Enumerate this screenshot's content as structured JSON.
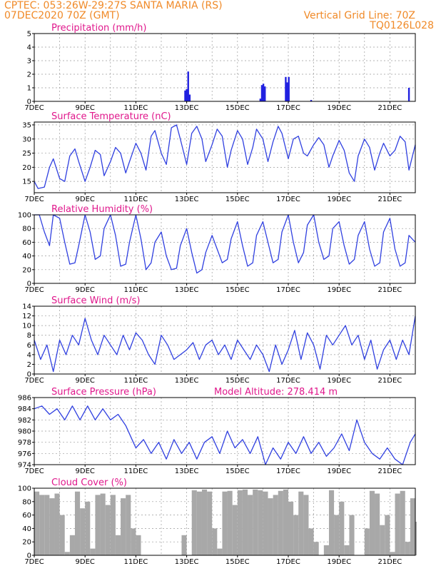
{
  "header": {
    "line1": "CPTEC:   053:26W-29:27S   SANTA MARIA (RS)",
    "line2": "07DEC2020 70Z (GMT)",
    "vertical_grid": "Vertical Grid Line: 70Z",
    "code": "TQ0126L028"
  },
  "colors": {
    "line": "#3040e0",
    "bar": "#2020e0",
    "cloud": "#a8a8a8",
    "title": "#e0188c",
    "header": "#f08a28"
  },
  "chart_data": [
    {
      "id": "precip",
      "type": "bar",
      "title": "Precipitation (mm/h)",
      "ylim": [
        0,
        5
      ],
      "yticks": [
        "0",
        "1",
        "2",
        "3",
        "4",
        "5"
      ],
      "xlim_days": [
        7,
        22
      ],
      "xticks": [
        "7DEC",
        "9DEC",
        "11DEC",
        "13DEC",
        "15DEC",
        "17DEC",
        "19DEC",
        "21DEC"
      ],
      "x": [
        12.94,
        13.0,
        13.06,
        13.12,
        15.9,
        15.96,
        16.02,
        16.08,
        16.9,
        16.96,
        17.02,
        17.9,
        21.75
      ],
      "values": [
        0.8,
        0.9,
        2.2,
        0.5,
        0.2,
        1.2,
        1.3,
        1.1,
        1.8,
        1.4,
        1.8,
        0.1,
        1.0
      ]
    },
    {
      "id": "temp",
      "type": "line",
      "title": "Surface Temperature (nC)",
      "ylim": [
        11,
        36
      ],
      "yticks": [
        "15",
        "20",
        "25",
        "30",
        "35"
      ],
      "xlim_days": [
        7,
        22
      ],
      "xticks": [
        "7DEC",
        "9DEC",
        "11DEC",
        "13DEC",
        "15DEC",
        "17DEC",
        "19DEC",
        "21DEC"
      ],
      "x": [
        7.0,
        7.15,
        7.4,
        7.6,
        7.75,
        8.0,
        8.2,
        8.4,
        8.6,
        8.75,
        9.0,
        9.2,
        9.4,
        9.6,
        9.75,
        10.0,
        10.2,
        10.4,
        10.6,
        10.75,
        11.0,
        11.2,
        11.4,
        11.6,
        11.75,
        12.0,
        12.2,
        12.4,
        12.6,
        12.75,
        13.0,
        13.2,
        13.4,
        13.6,
        13.75,
        14.0,
        14.2,
        14.4,
        14.6,
        14.75,
        15.0,
        15.2,
        15.4,
        15.6,
        15.75,
        16.0,
        16.2,
        16.4,
        16.6,
        16.75,
        17.0,
        17.2,
        17.4,
        17.6,
        17.75,
        18.0,
        18.2,
        18.4,
        18.6,
        18.75,
        19.0,
        19.2,
        19.4,
        19.6,
        19.75,
        20.0,
        20.2,
        20.4,
        20.6,
        20.75,
        21.0,
        21.2,
        21.4,
        21.6,
        21.75,
        22.0
      ],
      "values": [
        15,
        12.5,
        13,
        20,
        23,
        16,
        15,
        24,
        26.5,
        22,
        15,
        20,
        26,
        24.5,
        17,
        22,
        27,
        25,
        18,
        22,
        28.5,
        25,
        19,
        31,
        33,
        25,
        21,
        34,
        35,
        30,
        21,
        32,
        34.5,
        30,
        22,
        28,
        33.5,
        31,
        20,
        26,
        33,
        30,
        21,
        27,
        33.5,
        30,
        22,
        29,
        34.5,
        32,
        23,
        30,
        31,
        25,
        24,
        28,
        30.5,
        28,
        20,
        24,
        29.5,
        26,
        18,
        15,
        24,
        30,
        27,
        19,
        25,
        28.5,
        24,
        26,
        31,
        29,
        19,
        28
      ]
    },
    {
      "id": "rh",
      "type": "line",
      "title": "Relative Humidity (%)",
      "ylim": [
        0,
        100
      ],
      "yticks": [
        "0",
        "20",
        "40",
        "60",
        "80",
        "100"
      ],
      "xlim_days": [
        7,
        22
      ],
      "xticks": [
        "7DEC",
        "9DEC",
        "11DEC",
        "13DEC",
        "15DEC",
        "17DEC",
        "19DEC",
        "21DEC"
      ],
      "x": [
        7.0,
        7.2,
        7.4,
        7.6,
        7.75,
        8.0,
        8.2,
        8.4,
        8.6,
        8.75,
        9.0,
        9.2,
        9.4,
        9.6,
        9.75,
        10.0,
        10.2,
        10.4,
        10.6,
        10.75,
        11.0,
        11.2,
        11.4,
        11.6,
        11.75,
        12.0,
        12.2,
        12.4,
        12.6,
        12.75,
        13.0,
        13.2,
        13.4,
        13.6,
        13.75,
        14.0,
        14.2,
        14.4,
        14.6,
        14.75,
        15.0,
        15.2,
        15.4,
        15.6,
        15.75,
        16.0,
        16.2,
        16.4,
        16.6,
        16.75,
        17.0,
        17.2,
        17.4,
        17.6,
        17.75,
        18.0,
        18.2,
        18.4,
        18.6,
        18.75,
        19.0,
        19.2,
        19.4,
        19.6,
        19.75,
        20.0,
        20.2,
        20.4,
        20.6,
        20.75,
        21.0,
        21.2,
        21.4,
        21.6,
        21.75,
        22.0
      ],
      "values": [
        100,
        100,
        75,
        55,
        100,
        95,
        60,
        28,
        30,
        55,
        100,
        75,
        35,
        40,
        80,
        100,
        70,
        25,
        28,
        60,
        100,
        65,
        20,
        30,
        60,
        75,
        40,
        20,
        22,
        55,
        80,
        45,
        15,
        20,
        45,
        70,
        50,
        30,
        35,
        65,
        90,
        55,
        25,
        30,
        70,
        90,
        60,
        30,
        35,
        75,
        100,
        60,
        30,
        45,
        85,
        100,
        60,
        35,
        40,
        80,
        90,
        55,
        28,
        35,
        70,
        90,
        50,
        25,
        30,
        75,
        95,
        50,
        25,
        30,
        70,
        60
      ]
    },
    {
      "id": "wind",
      "type": "line",
      "title": "Surface Wind (m/s)",
      "ylim": [
        0,
        14
      ],
      "yticks": [
        "0",
        "2",
        "4",
        "6",
        "8",
        "10",
        "12",
        "14"
      ],
      "xlim_days": [
        7,
        22
      ],
      "xticks": [
        "7DEC",
        "9DEC",
        "11DEC",
        "13DEC",
        "15DEC",
        "17DEC",
        "19DEC",
        "21DEC"
      ],
      "x": [
        7.0,
        7.25,
        7.5,
        7.75,
        8.0,
        8.25,
        8.5,
        8.75,
        9.0,
        9.25,
        9.5,
        9.75,
        10.0,
        10.25,
        10.5,
        10.75,
        11.0,
        11.25,
        11.5,
        11.75,
        12.0,
        12.25,
        12.5,
        12.75,
        13.0,
        13.25,
        13.5,
        13.75,
        14.0,
        14.25,
        14.5,
        14.75,
        15.0,
        15.25,
        15.5,
        15.75,
        16.0,
        16.25,
        16.5,
        16.75,
        17.0,
        17.25,
        17.5,
        17.75,
        18.0,
        18.25,
        18.5,
        18.75,
        19.0,
        19.25,
        19.5,
        19.75,
        20.0,
        20.25,
        20.5,
        20.75,
        21.0,
        21.25,
        21.5,
        21.75,
        22.0
      ],
      "values": [
        7,
        3,
        6,
        0.5,
        7,
        4,
        8,
        6,
        11.5,
        7,
        4,
        8,
        6,
        4,
        8,
        5,
        8.5,
        7,
        4,
        2,
        8,
        6,
        3,
        4,
        5,
        6.5,
        3,
        6,
        7,
        4,
        6,
        3,
        7,
        5,
        3,
        6,
        4,
        0.5,
        6,
        2,
        5,
        9,
        3,
        8.5,
        6,
        1,
        8,
        6,
        8,
        10,
        6,
        8,
        3,
        7,
        1,
        5,
        7,
        3,
        7,
        4,
        12
      ]
    },
    {
      "id": "pressure",
      "type": "line",
      "title": "Surface Pressure (hPa)",
      "annotation": "Model Altitude: 278.414 m",
      "ylim": [
        974,
        986
      ],
      "yticks": [
        "974",
        "976",
        "978",
        "980",
        "982",
        "984",
        "986"
      ],
      "xlim_days": [
        7,
        22
      ],
      "xticks": [
        "7DEC",
        "9DEC",
        "11DEC",
        "13DEC",
        "15DEC",
        "17DEC",
        "19DEC",
        "21DEC"
      ],
      "x": [
        7.0,
        7.3,
        7.6,
        7.9,
        8.2,
        8.5,
        8.8,
        9.1,
        9.4,
        9.7,
        10.0,
        10.3,
        10.6,
        10.9,
        11.0,
        11.3,
        11.6,
        11.9,
        12.2,
        12.5,
        12.8,
        13.1,
        13.4,
        13.7,
        14.0,
        14.3,
        14.6,
        14.9,
        15.2,
        15.5,
        15.8,
        16.1,
        16.4,
        16.7,
        17.0,
        17.3,
        17.6,
        17.9,
        18.2,
        18.5,
        18.8,
        19.1,
        19.4,
        19.7,
        20.0,
        20.3,
        20.6,
        20.9,
        21.2,
        21.5,
        21.8,
        22.0
      ],
      "values": [
        984,
        984.5,
        983,
        984,
        982,
        984.5,
        982,
        984.5,
        982,
        984,
        982,
        983,
        981,
        978,
        977,
        978.5,
        976,
        978,
        975,
        978.5,
        976,
        978,
        975,
        978,
        979,
        976,
        980,
        977,
        978.5,
        976,
        979,
        974,
        977,
        975,
        978,
        976,
        979,
        976,
        978,
        975.5,
        977,
        979.5,
        976.5,
        982,
        978,
        976,
        975,
        977,
        975,
        974,
        978,
        979.5
      ]
    },
    {
      "id": "cloud",
      "type": "area",
      "title": "Cloud Cover (%)",
      "ylim": [
        0,
        100
      ],
      "yticks": [
        "0",
        "20",
        "40",
        "60",
        "80",
        "100"
      ],
      "xlim_days": [
        7,
        22
      ],
      "xticks": [
        "7DEC",
        "9DEC",
        "11DEC",
        "13DEC",
        "15DEC",
        "17DEC",
        "19DEC",
        "21DEC"
      ],
      "x": [
        7.0,
        7.1,
        7.2,
        7.4,
        7.6,
        7.8,
        8.0,
        8.2,
        8.4,
        8.6,
        8.8,
        9.0,
        9.2,
        9.4,
        9.6,
        9.8,
        10.0,
        10.2,
        10.4,
        10.6,
        10.8,
        11.0,
        11.2,
        11.4,
        11.6,
        11.8,
        12.0,
        12.2,
        12.4,
        12.6,
        12.8,
        13.0,
        13.2,
        13.4,
        13.6,
        13.8,
        14.0,
        14.2,
        14.4,
        14.6,
        14.8,
        15.0,
        15.2,
        15.4,
        15.6,
        15.8,
        16.0,
        16.2,
        16.4,
        16.6,
        16.8,
        17.0,
        17.2,
        17.4,
        17.6,
        17.8,
        18.0,
        18.2,
        18.4,
        18.6,
        18.8,
        19.0,
        19.2,
        19.4,
        19.6,
        19.8,
        20.0,
        20.2,
        20.4,
        20.6,
        20.8,
        21.0,
        21.2,
        21.4,
        21.6,
        21.8,
        22.0
      ],
      "values": [
        95,
        95,
        90,
        90,
        85,
        92,
        60,
        5,
        30,
        95,
        70,
        80,
        10,
        90,
        92,
        75,
        90,
        30,
        85,
        90,
        40,
        30,
        0,
        0,
        0,
        0,
        0,
        0,
        0,
        0,
        30,
        0,
        97,
        95,
        98,
        95,
        40,
        10,
        95,
        96,
        75,
        97,
        98,
        90,
        98,
        97,
        95,
        85,
        90,
        96,
        98,
        80,
        60,
        95,
        90,
        40,
        20,
        0,
        15,
        97,
        60,
        80,
        15,
        60,
        0,
        0,
        40,
        96,
        92,
        45,
        60,
        5,
        92,
        96,
        20,
        85,
        50
      ]
    }
  ]
}
